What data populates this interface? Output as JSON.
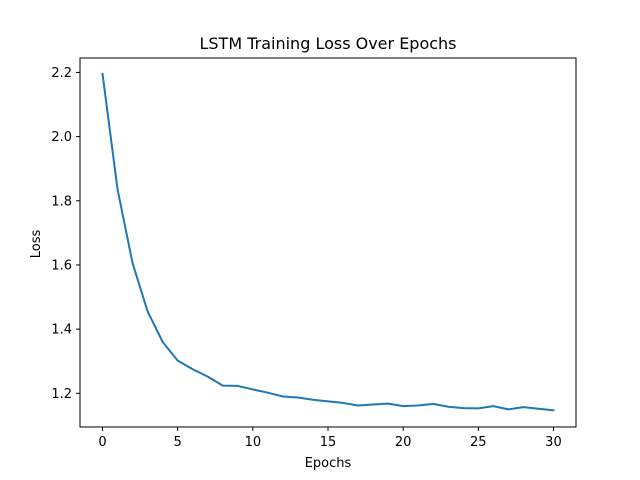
{
  "chart_data": {
    "type": "line",
    "title": "LSTM Training Loss Over Epochs",
    "xlabel": "Epochs",
    "ylabel": "Loss",
    "xlim": [
      -1.5,
      31.5
    ],
    "ylim": [
      1.095,
      2.245
    ],
    "x_ticks": [
      0,
      5,
      10,
      15,
      20,
      25,
      30
    ],
    "y_ticks": [
      1.2,
      1.4,
      1.6,
      1.8,
      2.0,
      2.2
    ],
    "y_tick_labels": [
      "1.2",
      "1.4",
      "1.6",
      "1.8",
      "2.0",
      "2.2"
    ],
    "grid": false,
    "series": [
      {
        "color": "#1f77b4",
        "x": [
          0,
          1,
          2,
          3,
          4,
          5,
          6,
          7,
          8,
          9,
          10,
          11,
          12,
          13,
          14,
          15,
          16,
          17,
          18,
          19,
          20,
          21,
          22,
          23,
          24,
          25,
          26,
          27,
          28,
          29,
          30
        ],
        "values": [
          2.195,
          1.835,
          1.605,
          1.455,
          1.36,
          1.302,
          1.275,
          1.252,
          1.224,
          1.223,
          1.212,
          1.202,
          1.19,
          1.187,
          1.18,
          1.175,
          1.17,
          1.162,
          1.165,
          1.168,
          1.16,
          1.162,
          1.167,
          1.158,
          1.154,
          1.153,
          1.16,
          1.15,
          1.157,
          1.152,
          1.147
        ]
      }
    ]
  }
}
